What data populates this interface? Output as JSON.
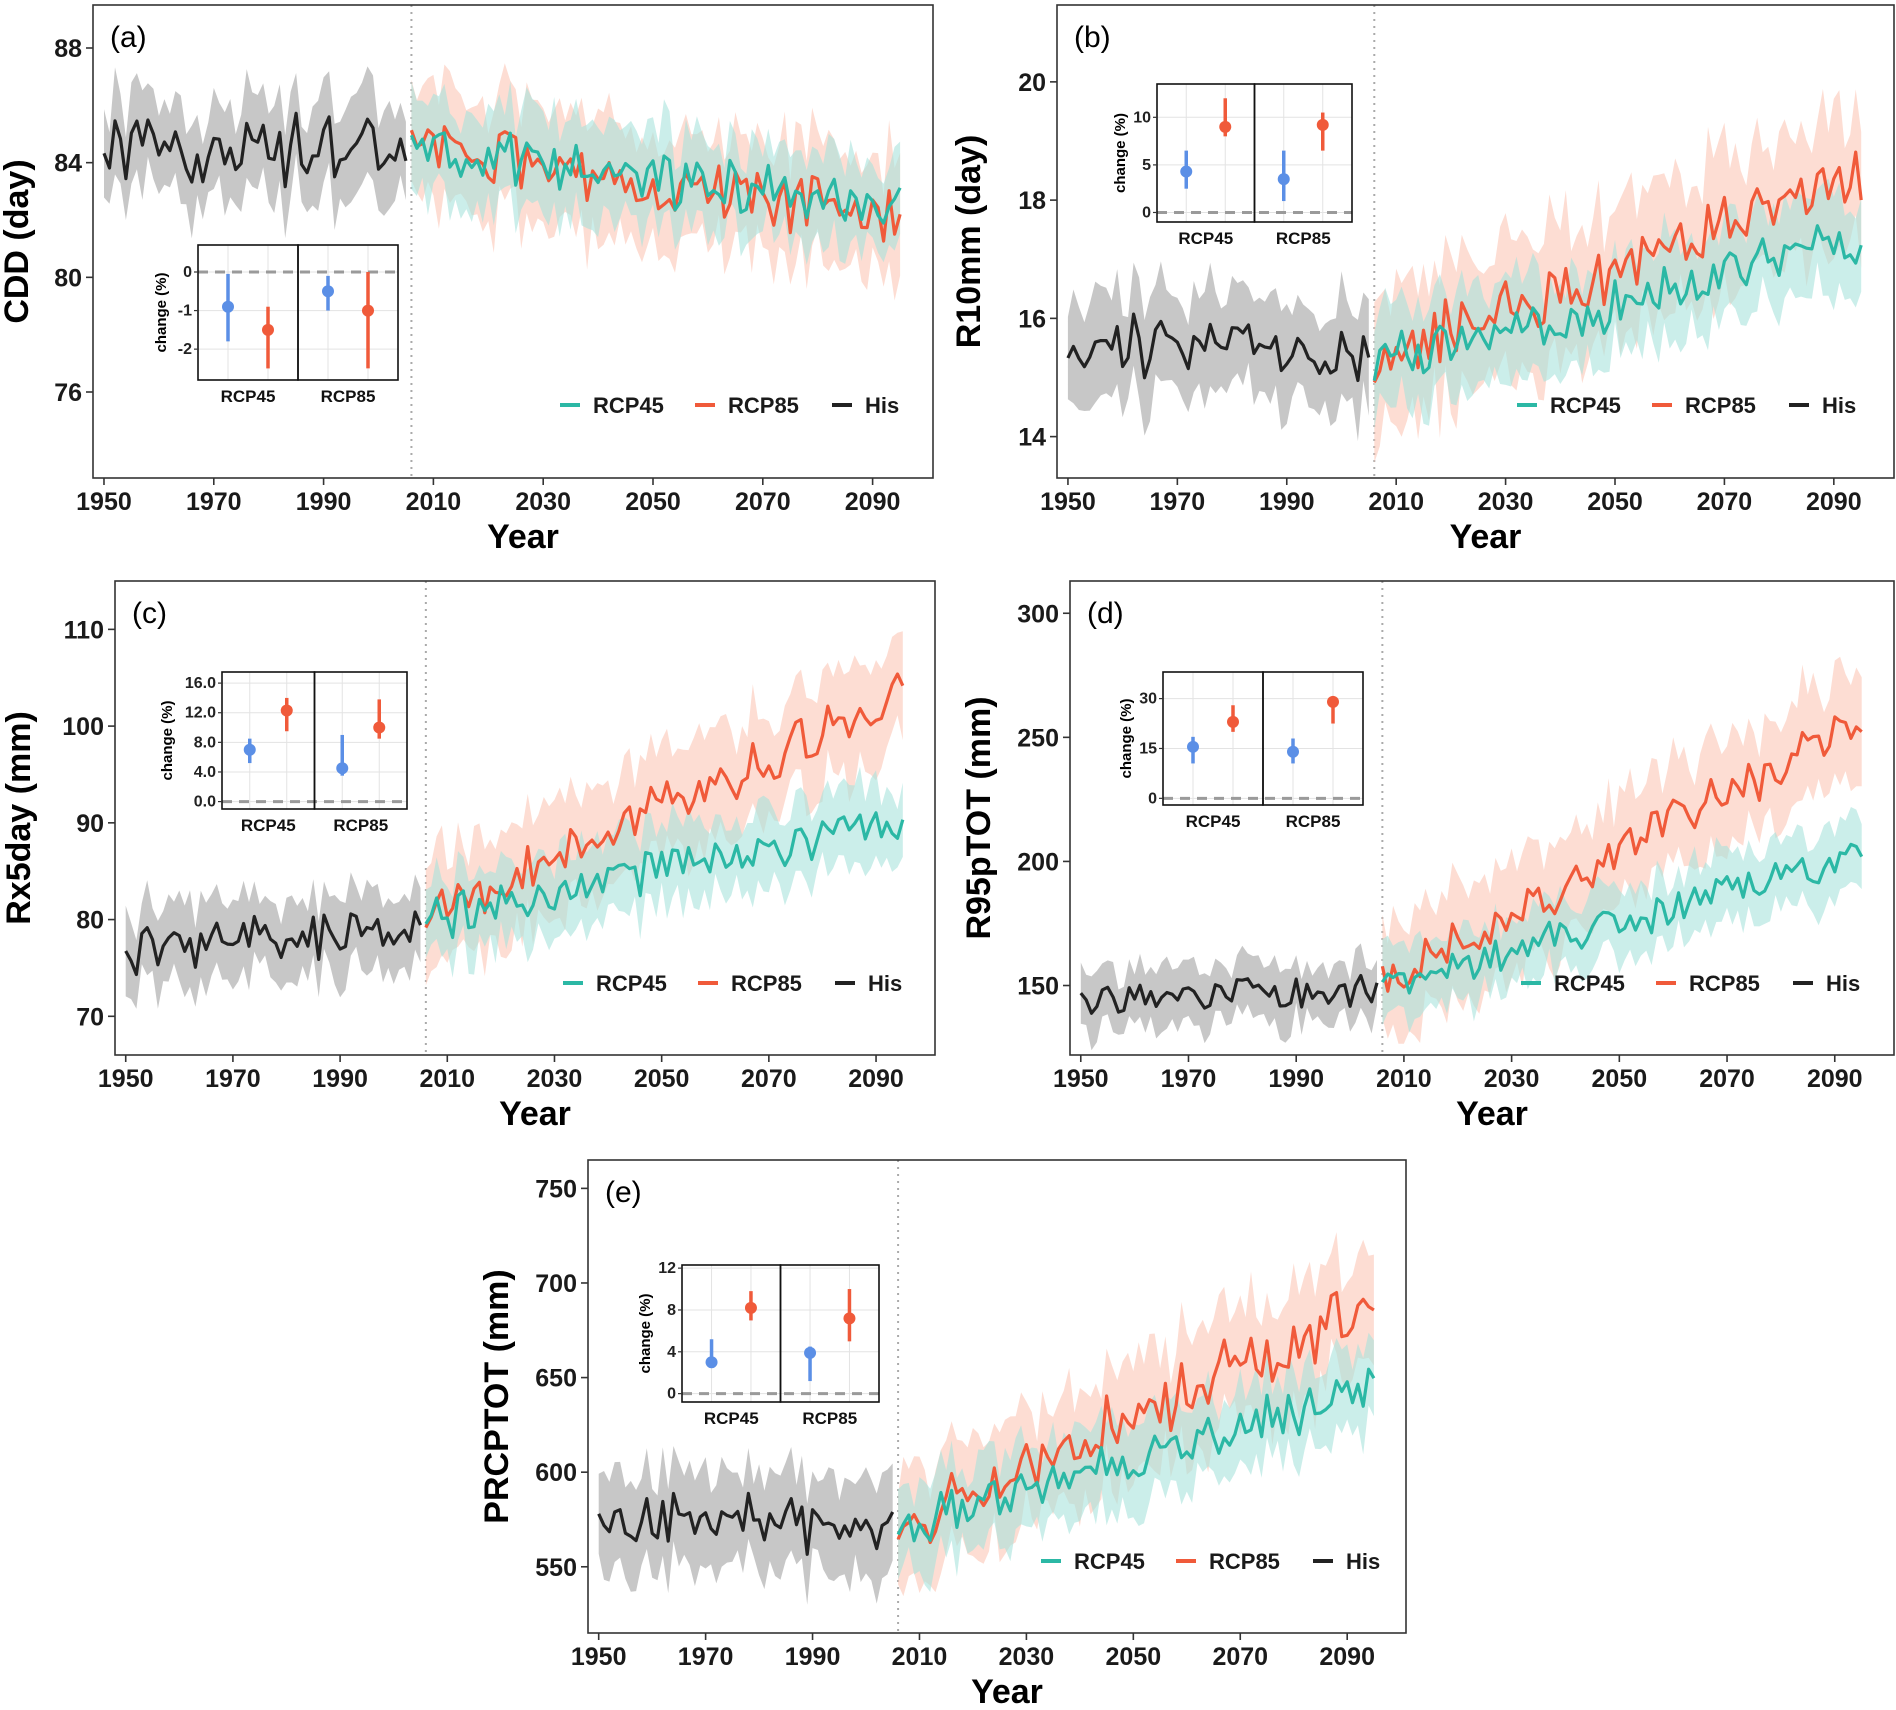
{
  "colors": {
    "rcp45": "#2bb8a5",
    "rcp85": "#f05a3a",
    "his": "#222222",
    "inset_rcp45": "#5b8fe6",
    "inset_rcp85": "#f05a3a",
    "his_band": "#bdbdbd",
    "rcp45_band": "#a9e3dc",
    "rcp85_band": "#fbc7b6"
  },
  "xlabel": "Year",
  "legend": [
    "RCP45",
    "RCP85",
    "His"
  ],
  "inset_ylabel": "change (%)",
  "inset_categories": [
    "RCP45",
    "RCP85"
  ],
  "chart_data": [
    {
      "type": "line",
      "panel_label": "(a)",
      "ylabel": "CDD (day)",
      "x_ticks": [
        "1950",
        "1970",
        "1990",
        "2010",
        "2030",
        "2050",
        "2070",
        "2090"
      ],
      "y_ticks": [
        "76",
        "80",
        "84",
        "88"
      ],
      "xlim": [
        1948,
        2101
      ],
      "ylim": [
        73,
        89.5
      ],
      "series": [
        {
          "name": "His",
          "x_range": [
            1950,
            2005
          ],
          "trend": [
            84.4,
            84.5
          ],
          "noise": 0.9,
          "band": 1.6
        },
        {
          "name": "RCP45",
          "x_range": [
            2006,
            2095
          ],
          "trend": [
            84.4,
            82.5
          ],
          "noise": 0.7,
          "band": 1.6
        },
        {
          "name": "RCP85",
          "x_range": [
            2006,
            2095
          ],
          "trend": [
            84.6,
            82.0
          ],
          "noise": 0.8,
          "band": 2.0
        }
      ],
      "inset": {
        "y_ticks": [
          "0",
          "-1",
          "-2"
        ],
        "ylim": [
          -2.8,
          0.7
        ],
        "groups": [
          {
            "label": "RCP45",
            "rcp45": {
              "value": -0.9,
              "low": -1.8,
              "high": -0.05
            },
            "rcp85": {
              "value": -1.5,
              "low": -2.5,
              "high": -0.9
            }
          },
          {
            "label": "RCP85",
            "rcp45": {
              "value": -0.5,
              "low": -1.0,
              "high": -0.1
            },
            "rcp85": {
              "value": -1.0,
              "low": -2.5,
              "high": 0.0
            }
          }
        ]
      }
    },
    {
      "type": "line",
      "panel_label": "(b)",
      "ylabel": "R10mm (day)",
      "x_ticks": [
        "1950",
        "1970",
        "1990",
        "2010",
        "2030",
        "2050",
        "2070",
        "2090"
      ],
      "y_ticks": [
        "14",
        "16",
        "18",
        "20"
      ],
      "xlim": [
        1948,
        2101
      ],
      "ylim": [
        13.3,
        21.3
      ],
      "series": [
        {
          "name": "His",
          "x_range": [
            1950,
            2005
          ],
          "trend": [
            15.6,
            15.4
          ],
          "noise": 0.45,
          "band": 0.85
        },
        {
          "name": "RCP45",
          "x_range": [
            2006,
            2095
          ],
          "trend": [
            15.2,
            17.4
          ],
          "noise": 0.35,
          "band": 0.8
        },
        {
          "name": "RCP85",
          "x_range": [
            2006,
            2095
          ],
          "trend": [
            15.3,
            18.5
          ],
          "noise": 0.45,
          "band": 1.1
        }
      ],
      "inset": {
        "y_ticks": [
          "0",
          "5",
          "10"
        ],
        "ylim": [
          -1,
          13.5
        ],
        "groups": [
          {
            "label": "RCP45",
            "rcp45": {
              "value": 4.3,
              "low": 2.5,
              "high": 6.5
            },
            "rcp85": {
              "value": 9.0,
              "low": 8.0,
              "high": 12.0
            }
          },
          {
            "label": "RCP85",
            "rcp45": {
              "value": 3.5,
              "low": 1.2,
              "high": 6.5
            },
            "rcp85": {
              "value": 9.2,
              "low": 6.5,
              "high": 10.5
            }
          }
        ]
      }
    },
    {
      "type": "line",
      "panel_label": "(c)",
      "ylabel": "Rx5day (mm)",
      "x_ticks": [
        "1950",
        "1970",
        "1990",
        "2010",
        "2030",
        "2050",
        "2070",
        "2090"
      ],
      "y_ticks": [
        "70",
        "80",
        "90",
        "100",
        "110"
      ],
      "xlim": [
        1948,
        2101
      ],
      "ylim": [
        66,
        115
      ],
      "series": [
        {
          "name": "His",
          "x_range": [
            1950,
            2005
          ],
          "trend": [
            77,
            79
          ],
          "noise": 2.0,
          "band": 4.0
        },
        {
          "name": "RCP45",
          "x_range": [
            2006,
            2095
          ],
          "trend": [
            80,
            90
          ],
          "noise": 1.8,
          "band": 4.0
        },
        {
          "name": "RCP85",
          "x_range": [
            2006,
            2095
          ],
          "trend": [
            80,
            103
          ],
          "noise": 2.2,
          "band": 5.5
        }
      ],
      "inset": {
        "y_ticks": [
          "0.0",
          "4.0",
          "8.0",
          "12.0",
          "16.0"
        ],
        "ylim": [
          -1,
          17.5
        ],
        "groups": [
          {
            "label": "RCP45",
            "rcp45": {
              "value": 7.0,
              "low": 5.2,
              "high": 8.5
            },
            "rcp85": {
              "value": 12.3,
              "low": 9.5,
              "high": 14.0
            }
          },
          {
            "label": "RCP85",
            "rcp45": {
              "value": 4.5,
              "low": 3.5,
              "high": 9.0
            },
            "rcp85": {
              "value": 10.0,
              "low": 8.5,
              "high": 13.8
            }
          }
        ]
      }
    },
    {
      "type": "line",
      "panel_label": "(d)",
      "ylabel": "R95pTOT (mm)",
      "x_ticks": [
        "1950",
        "1970",
        "1990",
        "2010",
        "2030",
        "2050",
        "2070",
        "2090"
      ],
      "y_ticks": [
        "150",
        "200",
        "250",
        "300"
      ],
      "xlim": [
        1948,
        2101
      ],
      "ylim": [
        122,
        313
      ],
      "series": [
        {
          "name": "His",
          "x_range": [
            1950,
            2005
          ],
          "trend": [
            145,
            148
          ],
          "noise": 5.5,
          "band": 12
        },
        {
          "name": "RCP45",
          "x_range": [
            2006,
            2095
          ],
          "trend": [
            150,
            203
          ],
          "noise": 6.0,
          "band": 14
        },
        {
          "name": "RCP85",
          "x_range": [
            2006,
            2095
          ],
          "trend": [
            150,
            258
          ],
          "noise": 7.0,
          "band": 22
        }
      ],
      "inset": {
        "y_ticks": [
          "0",
          "15",
          "30"
        ],
        "ylim": [
          -2,
          38
        ],
        "groups": [
          {
            "label": "RCP45",
            "rcp45": {
              "value": 15.5,
              "low": 10.5,
              "high": 18.5
            },
            "rcp85": {
              "value": 23.0,
              "low": 20.0,
              "high": 28.0
            }
          },
          {
            "label": "RCP85",
            "rcp45": {
              "value": 14.0,
              "low": 10.5,
              "high": 18.0
            },
            "rcp85": {
              "value": 29.0,
              "low": 22.5,
              "high": 30.5
            }
          }
        ]
      }
    },
    {
      "type": "line",
      "panel_label": "(e)",
      "ylabel": "PRCPTOT (mm)",
      "x_ticks": [
        "1950",
        "1970",
        "1990",
        "2010",
        "2030",
        "2050",
        "2070",
        "2090"
      ],
      "y_ticks": [
        "550",
        "600",
        "650",
        "700",
        "750"
      ],
      "xlim": [
        1948,
        2101
      ],
      "ylim": [
        515,
        765
      ],
      "series": [
        {
          "name": "His",
          "x_range": [
            1950,
            2005
          ],
          "trend": [
            580,
            568
          ],
          "noise": 12,
          "band": 24
        },
        {
          "name": "RCP45",
          "x_range": [
            2006,
            2095
          ],
          "trend": [
            570,
            645
          ],
          "noise": 10,
          "band": 22
        },
        {
          "name": "RCP85",
          "x_range": [
            2006,
            2095
          ],
          "trend": [
            570,
            688
          ],
          "noise": 13,
          "band": 30
        }
      ],
      "inset": {
        "y_ticks": [
          "0",
          "4",
          "8",
          "12"
        ],
        "ylim": [
          -0.8,
          12.3
        ],
        "groups": [
          {
            "label": "RCP45",
            "rcp45": {
              "value": 3.0,
              "low": 2.5,
              "high": 5.2
            },
            "rcp85": {
              "value": 8.2,
              "low": 7.0,
              "high": 9.8
            }
          },
          {
            "label": "RCP85",
            "rcp45": {
              "value": 3.9,
              "low": 1.2,
              "high": 4.5
            },
            "rcp85": {
              "value": 7.2,
              "low": 5.0,
              "high": 10.0
            }
          }
        ]
      }
    }
  ]
}
